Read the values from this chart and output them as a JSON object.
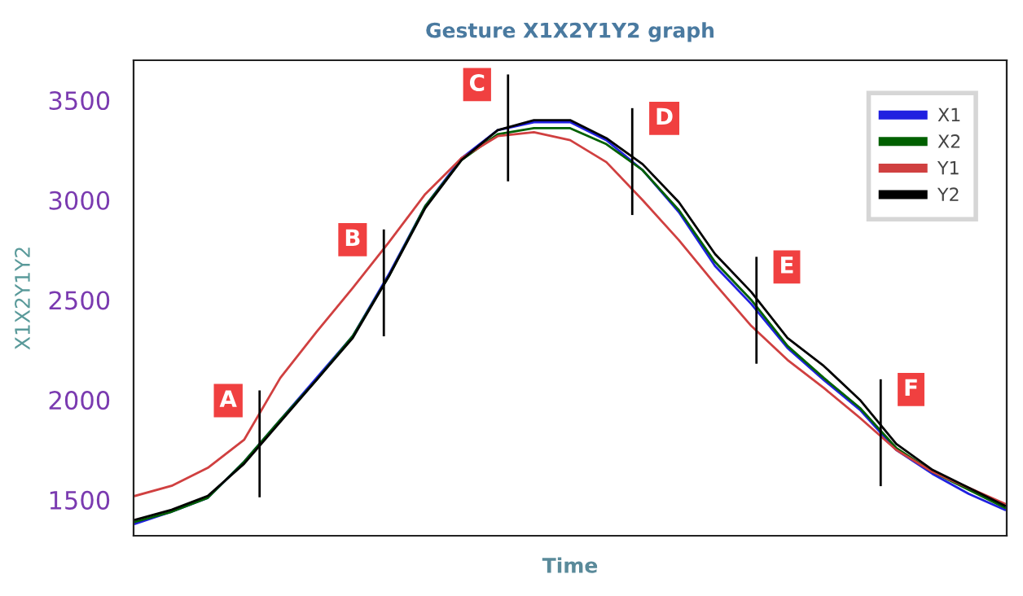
{
  "chart_data": {
    "type": "line",
    "title": "Gesture X1X2Y1Y2 graph",
    "xlabel": "Time",
    "ylabel": "X1X2Y1Y2",
    "categories": [
      null,
      null,
      null,
      null,
      null,
      null,
      null,
      null,
      null,
      null,
      null,
      null,
      null,
      null,
      null,
      null,
      null,
      null,
      null,
      null,
      null,
      null,
      null,
      null,
      null
    ],
    "series": [
      {
        "name": "X1",
        "color": "#2020e0",
        "values": [
          1380,
          1440,
          1510,
          1690,
          1900,
          2110,
          2320,
          2630,
          2970,
          3210,
          3350,
          3390,
          3390,
          3300,
          3150,
          2940,
          2670,
          2480,
          2260,
          2100,
          1950,
          1750,
          1630,
          1530,
          1450
        ]
      },
      {
        "name": "X2",
        "color": "#006000",
        "values": [
          1390,
          1440,
          1510,
          1690,
          1900,
          2100,
          2320,
          2620,
          2970,
          3200,
          3330,
          3360,
          3360,
          3280,
          3150,
          2950,
          2690,
          2500,
          2270,
          2110,
          1960,
          1760,
          1640,
          1550,
          1460
        ]
      },
      {
        "name": "Y1",
        "color": "#d04040",
        "values": [
          1520,
          1570,
          1660,
          1800,
          2110,
          2340,
          2560,
          2790,
          3030,
          3210,
          3320,
          3340,
          3300,
          3190,
          3000,
          2800,
          2580,
          2370,
          2200,
          2060,
          1910,
          1750,
          1640,
          1560,
          1480
        ]
      },
      {
        "name": "Y2",
        "color": "#000000",
        "values": [
          1400,
          1450,
          1520,
          1680,
          1890,
          2100,
          2310,
          2620,
          2960,
          3200,
          3350,
          3400,
          3400,
          3310,
          3180,
          2990,
          2730,
          2540,
          2310,
          2170,
          2000,
          1780,
          1650,
          1560,
          1470
        ]
      }
    ],
    "ylim": [
      1320,
      3700
    ],
    "yticks": [
      1500,
      2000,
      2500,
      3000,
      3500
    ],
    "annotations": [
      "A",
      "B",
      "C",
      "D",
      "E",
      "F"
    ],
    "legend": "top right",
    "grid": false,
    "marker": "none",
    "line_style": "solid"
  }
}
